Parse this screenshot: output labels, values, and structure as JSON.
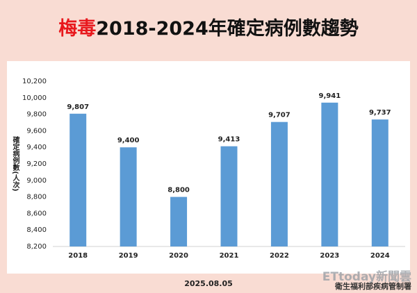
{
  "chart_data": {
    "type": "bar",
    "title": [
      "梅毒",
      "2018-2024年確定病例數趨勢"
    ],
    "y_label": "確定病例數(人次)",
    "categories": [
      "2018",
      "2019",
      "2020",
      "2021",
      "2022",
      "2023",
      "2024"
    ],
    "values": [
      9807,
      9400,
      8800,
      9413,
      9707,
      9941,
      9737
    ],
    "value_labels": [
      "9,807",
      "9,400",
      "8,800",
      "9,413",
      "9,707",
      "9,941",
      "9,737"
    ],
    "color": "#5b9bd5",
    "ylim": [
      8200,
      10200
    ],
    "yticks": [
      {
        "value": 8200,
        "label": "8,200"
      },
      {
        "value": 8400,
        "label": "8,400"
      },
      {
        "value": 8600,
        "label": "8,600"
      },
      {
        "value": 8800,
        "label": "8,800"
      },
      {
        "value": 9000,
        "label": "9,000"
      },
      {
        "value": 9200,
        "label": "9,200"
      },
      {
        "value": 9400,
        "label": "9,400"
      },
      {
        "value": 9600,
        "label": "9,600"
      },
      {
        "value": 9800,
        "label": "9,800"
      },
      {
        "value": 10000,
        "label": "10,000"
      },
      {
        "value": 10200,
        "label": "10,200"
      }
    ],
    "grid": false
  },
  "footer": {
    "date": "2025.08.05",
    "source": "衛生福利部疾病管制署",
    "watermark": "ETtoday新聞雲"
  }
}
